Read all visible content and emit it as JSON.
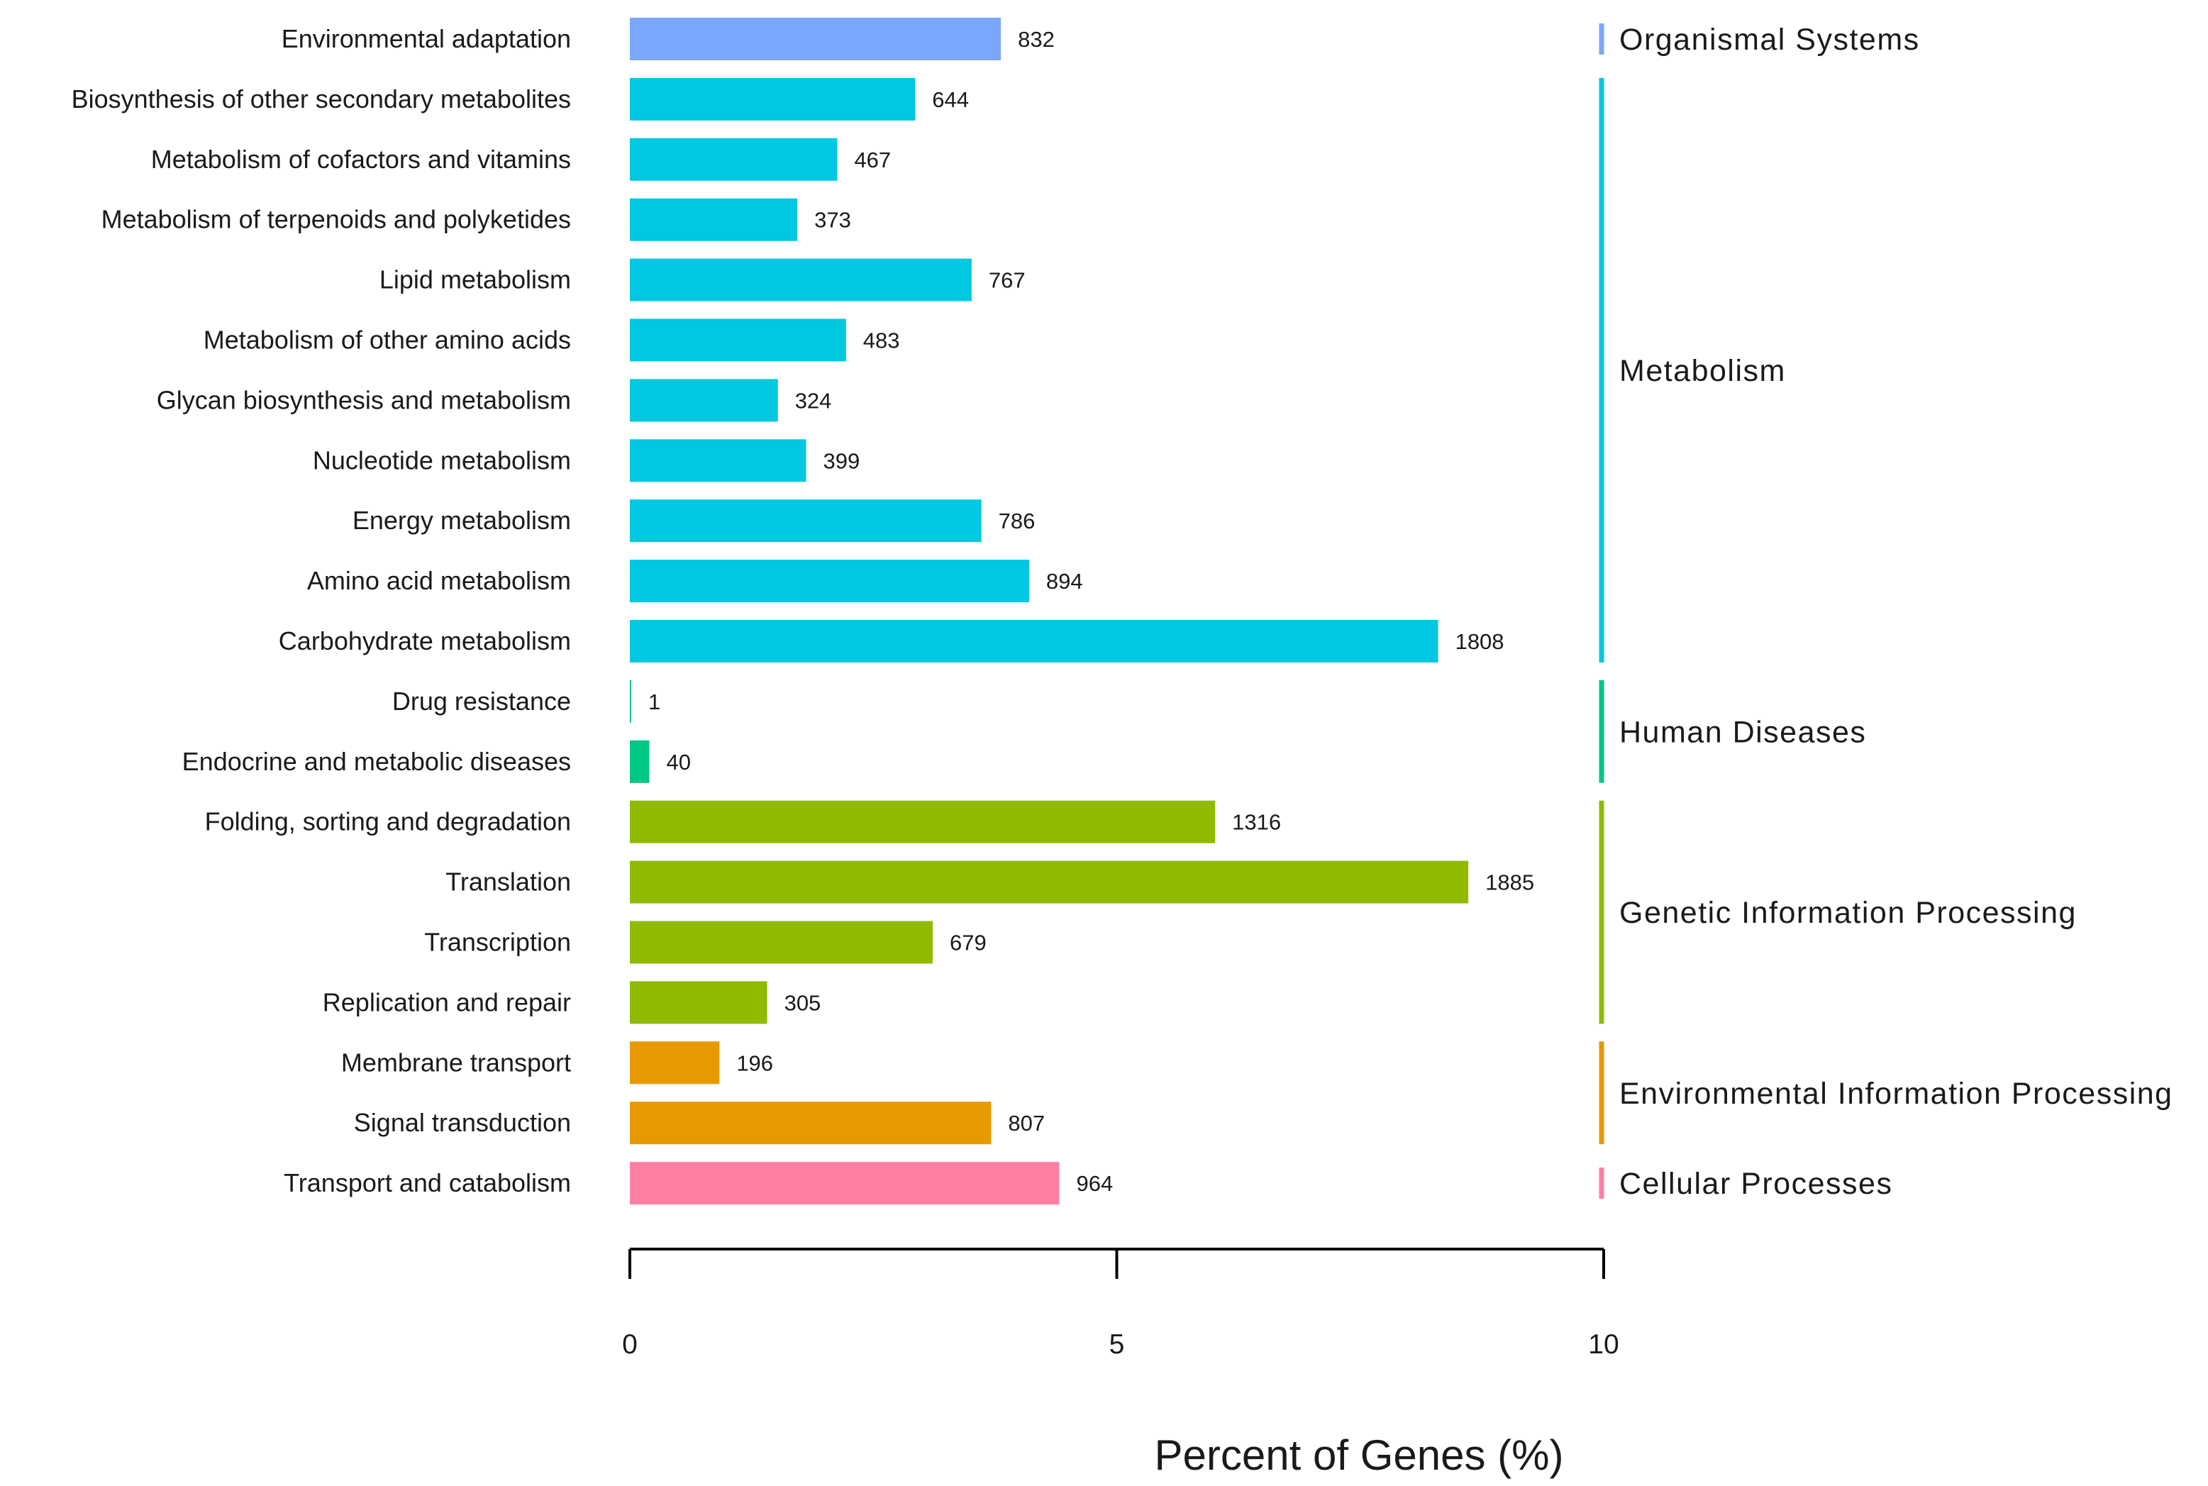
{
  "chart_data": {
    "type": "bar",
    "orientation": "horizontal",
    "title": "",
    "xlabel": "Percent of Genes (%)",
    "ylabel": "",
    "xlim": [
      0,
      10
    ],
    "xticks": [
      "0",
      "5",
      "10"
    ],
    "grid": false,
    "categories": [
      "Environmental adaptation",
      "Biosynthesis of other secondary metabolites",
      "Metabolism of cofactors and vitamins",
      "Metabolism of terpenoids and polyketides",
      "Lipid metabolism",
      "Metabolism of other amino acids",
      "Glycan biosynthesis and metabolism",
      "Nucleotide metabolism",
      "Energy metabolism",
      "Amino acid metabolism",
      "Carbohydrate metabolism",
      "Drug resistance",
      "Endocrine and metabolic diseases",
      "Folding, sorting and degradation",
      "Translation",
      "Transcription",
      "Replication and repair",
      "Membrane transport",
      "Signal transduction",
      "Transport and catabolism"
    ],
    "gene_counts": [
      "832",
      "644",
      "467",
      "373",
      "767",
      "483",
      "324",
      "399",
      "786",
      "894",
      "1808",
      "1",
      "40",
      "1316",
      "1885",
      "679",
      "305",
      "196",
      "807",
      "964"
    ],
    "values": [
      3.81,
      2.93,
      2.13,
      1.72,
      3.51,
      2.22,
      1.52,
      1.81,
      3.61,
      4.1,
      8.3,
      0.01,
      0.2,
      6.01,
      8.61,
      3.11,
      1.41,
      0.92,
      3.71,
      4.41
    ],
    "groups": [
      {
        "name": "Organismal Systems",
        "color": "#7aa6fb",
        "start": 0,
        "end": 0
      },
      {
        "name": "Metabolism",
        "color": "#00c8e0",
        "start": 1,
        "end": 10
      },
      {
        "name": "Human Diseases",
        "color": "#00c882",
        "start": 11,
        "end": 12
      },
      {
        "name": "Genetic Information Processing",
        "color": "#8fba00",
        "start": 13,
        "end": 16
      },
      {
        "name": "Environmental Information Processing",
        "color": "#e69a00",
        "start": 17,
        "end": 18
      },
      {
        "name": "Cellular Processes",
        "color": "#ff7fa3",
        "start": 19,
        "end": 19
      }
    ]
  }
}
